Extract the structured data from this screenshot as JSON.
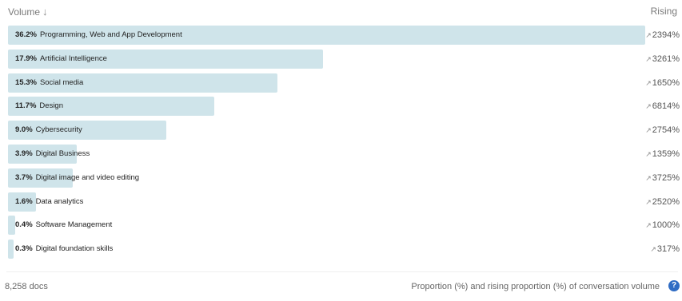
{
  "header": {
    "sort_label": "Volume",
    "sort_arrow": "↓",
    "sort_arrow_icon": "arrow-down-icon",
    "rising_label": "Rising"
  },
  "chart_data": {
    "type": "bar",
    "orientation": "horizontal",
    "max_value": 36.2,
    "categories": [
      "Programming, Web and App Development",
      "Artificial Intelligence",
      "Social media",
      "Design",
      "Cybersecurity",
      "Digital Business",
      "Digital image and video editing",
      "Data analytics",
      "Software Management",
      "Digital foundation skills"
    ],
    "values": [
      36.2,
      17.9,
      15.3,
      11.7,
      9.0,
      3.9,
      3.7,
      1.6,
      0.4,
      0.3
    ],
    "value_labels": [
      "36.2%",
      "17.9%",
      "15.3%",
      "11.7%",
      "9.0%",
      "3.9%",
      "3.7%",
      "1.6%",
      "0.4%",
      "0.3%"
    ],
    "rising": [
      "2394%",
      "3261%",
      "1650%",
      "6814%",
      "2754%",
      "1359%",
      "3725%",
      "2520%",
      "1000%",
      "317%"
    ],
    "rising_arrow": "↗",
    "bar_color": "#cfe4ea"
  },
  "footer": {
    "docs": "8,258 docs",
    "caption": "Proportion (%) and rising proportion (%) of conversation volume",
    "help_icon": "?"
  }
}
